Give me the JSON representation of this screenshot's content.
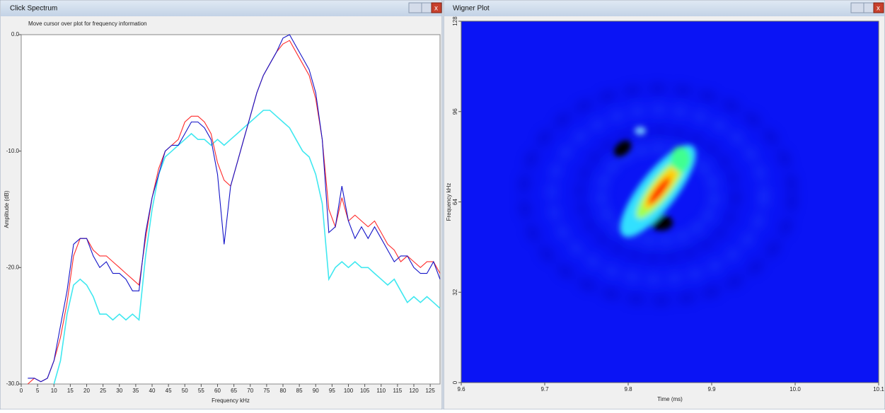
{
  "windows": [
    {
      "title": "Click Spectrum",
      "hint": "Move cursor over plot for frequency information",
      "chart": {
        "type": "line",
        "xlabel": "Frequency kHz",
        "ylabel": "Amplitude (dB)",
        "xlim": [
          0,
          128
        ],
        "xticks": [
          0,
          5,
          10,
          15,
          20,
          25,
          30,
          35,
          40,
          45,
          50,
          55,
          60,
          65,
          70,
          75,
          80,
          85,
          90,
          95,
          100,
          105,
          110,
          115,
          120,
          125
        ],
        "ylim": [
          -30,
          0
        ],
        "yticks": [
          {
            "value": -30,
            "label": "-30.0"
          },
          {
            "value": -20,
            "label": "-20.0"
          },
          {
            "value": -10,
            "label": "-10.0"
          },
          {
            "value": 0,
            "label": "0.0"
          }
        ],
        "x": [
          2,
          4,
          6,
          8,
          10,
          12,
          14,
          16,
          18,
          20,
          22,
          24,
          26,
          28,
          30,
          32,
          34,
          36,
          38,
          40,
          42,
          44,
          46,
          48,
          50,
          52,
          54,
          56,
          58,
          60,
          62,
          64,
          66,
          68,
          70,
          72,
          74,
          76,
          78,
          80,
          82,
          84,
          86,
          88,
          90,
          92,
          94,
          96,
          98,
          100,
          102,
          104,
          106,
          108,
          110,
          112,
          114,
          116,
          118,
          120,
          122,
          124,
          126,
          128
        ],
        "series": [
          {
            "color": "#40e8f0",
            "values": [
              null,
              null,
              null,
              null,
              -30,
              -28,
              -24,
              -21.5,
              -21,
              -21.5,
              -22.5,
              -24,
              -24,
              -24.5,
              -24,
              -24.5,
              -24,
              -24.5,
              -19,
              -15,
              -12,
              -10.5,
              -10,
              -9.5,
              -9,
              -8.5,
              -9,
              -9,
              -9.5,
              -9,
              -9.5,
              -9,
              -8.5,
              -8,
              -7.5,
              -7,
              -6.5,
              -6.5,
              -7,
              -7.5,
              -8,
              -9,
              -10,
              -10.5,
              -12,
              -14.5,
              -21,
              -20,
              -19.5,
              -20,
              -19.5,
              -20,
              -20,
              -20.5,
              -21,
              -21.5,
              -21,
              -22,
              -23,
              -22.5,
              -23,
              -22.5,
              -23,
              -23.5
            ]
          },
          {
            "color": "#ff2a2a",
            "values": [
              -30,
              -29.5,
              -29.8,
              -29.5,
              -28,
              -26,
              -23,
              -19,
              -17.5,
              -17.5,
              -18.5,
              -19,
              -19,
              -19.5,
              -20,
              -20.5,
              -21,
              -21.5,
              -17.5,
              -14,
              -11.5,
              -10,
              -9.5,
              -9,
              -7.5,
              -7,
              -7,
              -7.5,
              -8.5,
              -11,
              -12.5,
              -13,
              -11,
              -9,
              -7,
              -5,
              -3.5,
              -2.5,
              -1.5,
              -0.8,
              -0.5,
              -1.5,
              -2.5,
              -3.5,
              -5.5,
              -9,
              -15,
              -16.5,
              -14,
              -16,
              -15.5,
              -16,
              -16.5,
              -16,
              -17,
              -18,
              -18.5,
              -19.5,
              -19,
              -19.5,
              -20,
              -19.5,
              -19.5,
              -20.5
            ]
          },
          {
            "color": "#1414c8",
            "values": [
              -29.5,
              -29.5,
              -29.8,
              -29.5,
              -28,
              -25,
              -22,
              -18,
              -17.5,
              -17.5,
              -19,
              -20,
              -19.5,
              -20.5,
              -20.5,
              -21,
              -22,
              -22,
              -17,
              -14,
              -12,
              -10,
              -9.5,
              -9.5,
              -8.5,
              -7.5,
              -7.5,
              -8,
              -9,
              -12,
              -18,
              -13,
              -11,
              -9,
              -7,
              -5,
              -3.5,
              -2.5,
              -1.5,
              -0.3,
              0,
              -1,
              -2,
              -3,
              -5,
              -9,
              -17,
              -16.5,
              -13,
              -16,
              -17.5,
              -16.5,
              -17.5,
              -16.5,
              -17.5,
              -18.5,
              -19.5,
              -19,
              -19,
              -20,
              -20.5,
              -20.5,
              -19.5,
              -21
            ]
          }
        ]
      }
    },
    {
      "title": "Wigner Plot",
      "chart": {
        "type": "heatmap",
        "xlabel": "Time (ms)",
        "ylabel": "Frequency kHz",
        "xlim": [
          9.6,
          10.1
        ],
        "xticks": [
          9.6,
          9.7,
          9.8,
          9.9,
          {
            "value": 10,
            "label": "10.0"
          },
          10.1
        ],
        "ylim": [
          0,
          128
        ],
        "yticks": [
          0,
          32,
          64,
          96,
          128
        ],
        "color": "#0a14f5"
      }
    }
  ]
}
